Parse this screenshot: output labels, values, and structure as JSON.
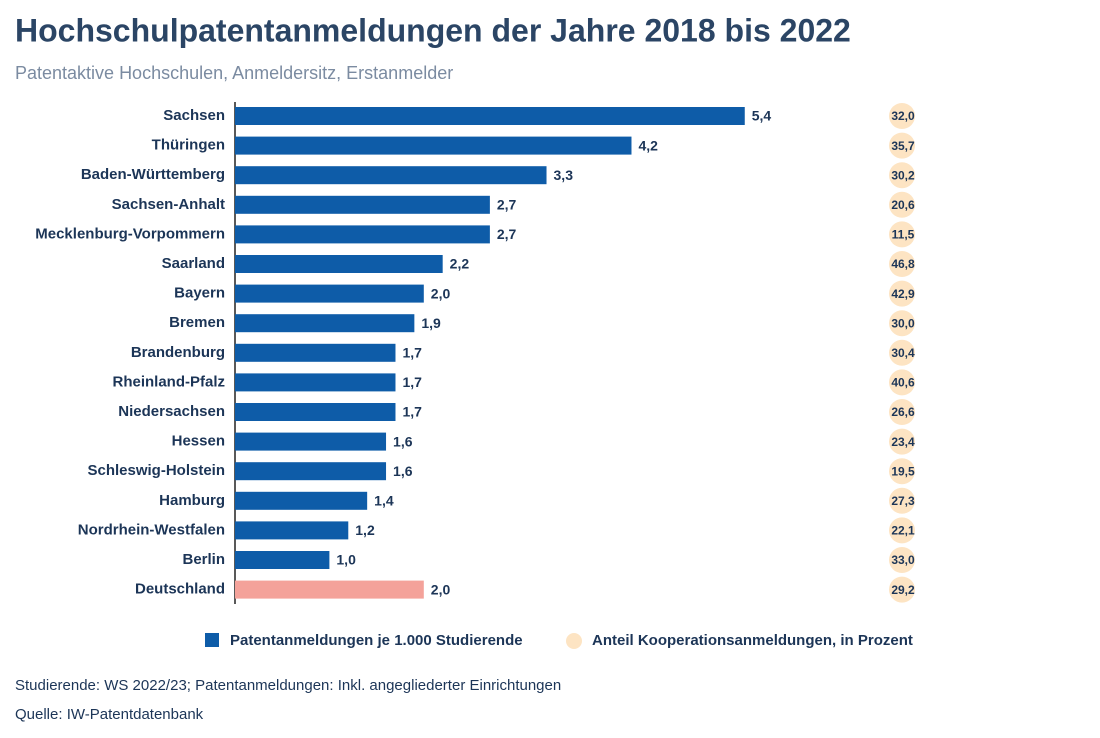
{
  "chart_data": {
    "type": "bar",
    "title": "Hochschulpatentanmeldungen der Jahre 2018 bis 2022",
    "subtitle": "Patentaktive Hochschulen, Anmeldersitz, Erstanmelder",
    "categories": [
      "Sachsen",
      "Thüringen",
      "Baden-Württemberg",
      "Sachsen-Anhalt",
      "Mecklenburg-Vorpommern",
      "Saarland",
      "Bayern",
      "Bremen",
      "Brandenburg",
      "Rheinland-Pfalz",
      "Niedersachsen",
      "Hessen",
      "Schleswig-Holstein",
      "Hamburg",
      "Nordrhein-Westfalen",
      "Berlin",
      "Deutschland"
    ],
    "series": [
      {
        "name": "Patentanmeldungen je 1.000 Studierende",
        "color": "#0e5ca8",
        "colors": [
          "#0e5ca8",
          "#0e5ca8",
          "#0e5ca8",
          "#0e5ca8",
          "#0e5ca8",
          "#0e5ca8",
          "#0e5ca8",
          "#0e5ca8",
          "#0e5ca8",
          "#0e5ca8",
          "#0e5ca8",
          "#0e5ca8",
          "#0e5ca8",
          "#0e5ca8",
          "#0e5ca8",
          "#0e5ca8",
          "#f4a29a"
        ],
        "values": [
          5.4,
          4.2,
          3.3,
          2.7,
          2.7,
          2.2,
          2.0,
          1.9,
          1.7,
          1.7,
          1.7,
          1.6,
          1.6,
          1.4,
          1.2,
          1.0,
          2.0
        ],
        "value_labels": [
          "5,4",
          "4,2",
          "3,3",
          "2,7",
          "2,7",
          "2,2",
          "2,0",
          "1,9",
          "1,7",
          "1,7",
          "1,7",
          "1,6",
          "1,6",
          "1,4",
          "1,2",
          "1,0",
          "2,0"
        ]
      },
      {
        "name": "Anteil Kooperationsanmeldungen, in Prozent",
        "color": "#fde4c3",
        "values": [
          32.0,
          35.7,
          30.2,
          20.6,
          11.5,
          46.8,
          42.9,
          30.0,
          30.4,
          40.6,
          26.6,
          23.4,
          19.5,
          27.3,
          22.1,
          33.0,
          29.2
        ],
        "value_labels": [
          "32,0",
          "35,7",
          "30,2",
          "20,6",
          "11,5",
          "46,8",
          "42,9",
          "30,0",
          "30,4",
          "40,6",
          "26,6",
          "23,4",
          "19,5",
          "27,3",
          "22,1",
          "33,0",
          "29,2"
        ]
      }
    ],
    "notes": [
      "Studierende: WS 2022/23; Patentanmeldungen: Inkl. angegliederter Einrichtungen",
      "Quelle: IW-Patentdatenbank"
    ]
  }
}
